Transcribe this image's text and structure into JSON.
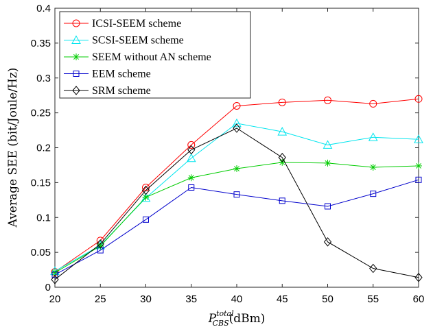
{
  "chart_data": {
    "type": "line",
    "xlabel_main": "P",
    "xlabel_sup": "total",
    "xlabel_sub": "CBS",
    "xlabel_unit": "(dBm)",
    "ylabel": "Average SEE (bit/Joule/Hz)",
    "x": [
      20,
      25,
      30,
      35,
      40,
      45,
      50,
      55,
      60
    ],
    "xlim": [
      20,
      60
    ],
    "ylim": [
      0,
      0.4
    ],
    "xticks": [
      "20",
      "25",
      "30",
      "35",
      "40",
      "45",
      "50",
      "55",
      "60"
    ],
    "yticks": [
      "0",
      "0.05",
      "0.1",
      "0.15",
      "0.2",
      "0.25",
      "0.3",
      "0.35",
      "0.4"
    ],
    "legend_position": "top-left",
    "grid": false,
    "series": [
      {
        "name": "ICSI-SEEM scheme",
        "color": "#ff0000",
        "marker": "circle",
        "values": [
          0.022,
          0.067,
          0.143,
          0.204,
          0.26,
          0.265,
          0.268,
          0.263,
          0.27
        ]
      },
      {
        "name": "SCSI-SEEM scheme",
        "color": "#00e5ee",
        "marker": "triangle",
        "values": [
          0.023,
          0.06,
          0.128,
          0.185,
          0.235,
          0.223,
          0.204,
          0.215,
          0.212
        ]
      },
      {
        "name": "SEEM without AN scheme",
        "color": "#00cc00",
        "marker": "star",
        "values": [
          0.021,
          0.059,
          0.129,
          0.157,
          0.17,
          0.179,
          0.178,
          0.172,
          0.174
        ]
      },
      {
        "name": "EEM scheme",
        "color": "#0000cc",
        "marker": "square",
        "values": [
          0.018,
          0.053,
          0.097,
          0.143,
          0.133,
          0.124,
          0.116,
          0.134,
          0.154
        ]
      },
      {
        "name": "SRM scheme",
        "color": "#000000",
        "marker": "diamond",
        "values": [
          0.011,
          0.062,
          0.139,
          0.197,
          0.228,
          0.186,
          0.065,
          0.027,
          0.014
        ]
      }
    ]
  }
}
